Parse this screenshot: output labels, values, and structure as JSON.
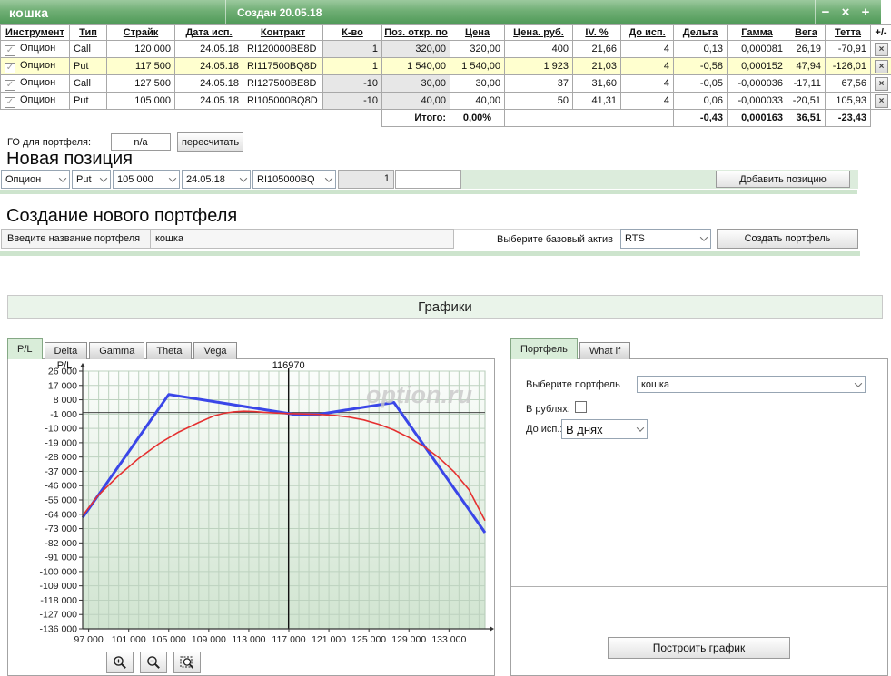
{
  "window": {
    "title": "кошка",
    "created_label": "Создан 20.05.18",
    "minimize_label": "−",
    "close_label": "×",
    "add_label": "+"
  },
  "icons": {
    "checkbox_check": "✓",
    "row_delete": "×",
    "dropdown_chevron": "chevron-down-icon",
    "zoom_in": "magnifier-plus-icon",
    "zoom_out": "magnifier-minus-icon",
    "zoom_region": "magnifier-region-icon"
  },
  "positions_table": {
    "columns": [
      "Инструмент",
      "Тип",
      "Страйк",
      "Дата исп.",
      "Контракт",
      "К-во",
      "Поз. откр. по",
      "Цена",
      "Цена. руб.",
      "IV. %",
      "До исп.",
      "Дельта",
      "Гамма",
      "Вега",
      "Тетта",
      "+/-"
    ],
    "rows": [
      {
        "instrument": "Опцион",
        "type": "Call",
        "strike": "120 000",
        "exp_date": "24.05.18",
        "contract": "RI120000BE8D",
        "qty": "1",
        "open_pos": "320,00",
        "price": "320,00",
        "price_rub": "400",
        "iv": "21,66",
        "days": "4",
        "delta": "0,13",
        "gamma": "0,000081",
        "vega": "26,19",
        "theta": "-70,91"
      },
      {
        "instrument": "Опцион",
        "type": "Put",
        "strike": "117 500",
        "exp_date": "24.05.18",
        "contract": "RI117500BQ8D",
        "qty": "1",
        "open_pos": "1 540,00",
        "price": "1 540,00",
        "price_rub": "1 923",
        "iv": "21,03",
        "days": "4",
        "delta": "-0,58",
        "gamma": "0,000152",
        "vega": "47,94",
        "theta": "-126,01"
      },
      {
        "instrument": "Опцион",
        "type": "Call",
        "strike": "127 500",
        "exp_date": "24.05.18",
        "contract": "RI127500BE8D",
        "qty": "-10",
        "open_pos": "30,00",
        "price": "30,00",
        "price_rub": "37",
        "iv": "31,60",
        "days": "4",
        "delta": "-0,05",
        "gamma": "-0,000036",
        "vega": "-17,11",
        "theta": "67,56"
      },
      {
        "instrument": "Опцион",
        "type": "Put",
        "strike": "105 000",
        "exp_date": "24.05.18",
        "contract": "RI105000BQ8D",
        "qty": "-10",
        "open_pos": "40,00",
        "price": "40,00",
        "price_rub": "50",
        "iv": "41,31",
        "days": "4",
        "delta": "0,06",
        "gamma": "-0,000033",
        "vega": "-20,51",
        "theta": "105,93"
      }
    ],
    "totals": {
      "label": "Итого:",
      "percent": "0,00%",
      "delta": "-0,43",
      "gamma": "0,000163",
      "vega": "36,51",
      "theta": "-23,43"
    }
  },
  "go_row": {
    "label": "ГО для портфеля:",
    "value": "n/a",
    "recalc_button": "пересчитать"
  },
  "new_position": {
    "heading": "Новая позиция",
    "instrument": "Опцион",
    "type": "Put",
    "strike": "105 000",
    "date": "24.05.18",
    "contract": "RI105000BQ",
    "qty": "1",
    "add_button": "Добавить позицию"
  },
  "new_portfolio": {
    "heading": "Создание нового портфеля",
    "name_label": "Введите название портфеля",
    "name_value": "кошка",
    "asset_label": "Выберите базовый актив",
    "asset_value": "RTS",
    "create_button": "Создать портфель"
  },
  "charts_section": {
    "banner": "Графики"
  },
  "chart_panel": {
    "tabs": [
      "P/L",
      "Delta",
      "Gamma",
      "Theta",
      "Vega"
    ],
    "active_tab": "P/L"
  },
  "right_panel": {
    "tabs": [
      "Портфель",
      "What if"
    ],
    "active_tab": "Портфель",
    "portfolio_label": "Выберите портфель",
    "portfolio_value": "кошка",
    "rub_label": "В рублях:",
    "rub_checked": false,
    "days_label": "До исп.:",
    "days_value": "В днях",
    "build_button": "Построить график"
  },
  "chart_data": {
    "type": "line",
    "title": "P/L",
    "ylabel": "P/L",
    "watermark": "option.ru",
    "marker_x": 116970,
    "marker_label": "116970",
    "xlim": [
      96400,
      136600
    ],
    "ylim": [
      -136000,
      26000
    ],
    "grid": true,
    "x_ticks": [
      97000,
      101000,
      105000,
      109000,
      113000,
      117000,
      121000,
      125000,
      129000,
      133000
    ],
    "x_tick_labels": [
      "97 000",
      "101 000",
      "105 000",
      "109 000",
      "113 000",
      "117 000",
      "121 000",
      "125 000",
      "129 000",
      "133 000"
    ],
    "y_ticks": [
      26000,
      17000,
      8000,
      -1000,
      -10000,
      -19000,
      -28000,
      -37000,
      -46000,
      -55000,
      -64000,
      -73000,
      -82000,
      -91000,
      -100000,
      -109000,
      -118000,
      -127000,
      -136000
    ],
    "y_tick_labels": [
      "26 000",
      "17 000",
      "8 000",
      "-1 000",
      "-10 000",
      "-19 000",
      "-28 000",
      "-37 000",
      "-46 000",
      "-55 000",
      "-64 000",
      "-73 000",
      "-82 000",
      "-91 000",
      "-100 000",
      "-109 000",
      "-118 000",
      "-127 000",
      "-136 000"
    ],
    "series": [
      {
        "name": "expiration-pl",
        "color": "#3a46e8",
        "width": 3,
        "points": [
          [
            96400,
            -66060
          ],
          [
            105000,
            11340
          ],
          [
            117500,
            -1160
          ],
          [
            120000,
            -1160
          ],
          [
            127500,
            6340
          ],
          [
            136600,
            -75560
          ]
        ]
      },
      {
        "name": "current-pl",
        "color": "#e53030",
        "width": 1.6,
        "points": [
          [
            96400,
            -64800
          ],
          [
            98000,
            -51800
          ],
          [
            100000,
            -39600
          ],
          [
            102000,
            -28900
          ],
          [
            104000,
            -19700
          ],
          [
            106000,
            -12300
          ],
          [
            108000,
            -6300
          ],
          [
            109500,
            -2200
          ],
          [
            110500,
            -500
          ],
          [
            111500,
            400
          ],
          [
            112500,
            800
          ],
          [
            113500,
            600
          ],
          [
            114500,
            100
          ],
          [
            115500,
            -300
          ],
          [
            117000,
            -700
          ],
          [
            118500,
            -900
          ],
          [
            120000,
            -1200
          ],
          [
            121500,
            -1800
          ],
          [
            123000,
            -2900
          ],
          [
            124500,
            -4700
          ],
          [
            126000,
            -7400
          ],
          [
            127500,
            -11000
          ],
          [
            129000,
            -15700
          ],
          [
            130500,
            -21400
          ],
          [
            132000,
            -28400
          ],
          [
            133500,
            -37200
          ],
          [
            135000,
            -48600
          ],
          [
            136600,
            -68000
          ]
        ]
      }
    ]
  }
}
